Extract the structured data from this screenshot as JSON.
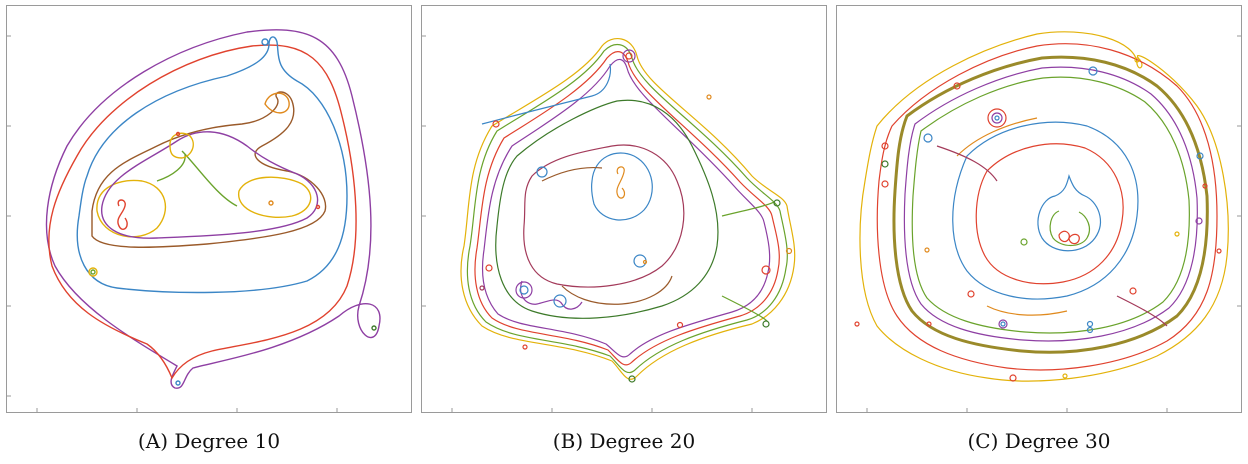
{
  "figure": {
    "panels": [
      {
        "letter": "A",
        "caption": "Degree 10"
      },
      {
        "letter": "B",
        "caption": "Degree 20"
      },
      {
        "letter": "C",
        "caption": "Degree 30"
      }
    ],
    "colors": {
      "blue": "#3b86c6",
      "red": "#e0422e",
      "gold": "#e3b20a",
      "purple": "#8e3fa3",
      "green": "#6aa32c",
      "orange": "#e08a1e",
      "maroon": "#a33a5a",
      "dark_green": "#3d7a2a"
    }
  }
}
